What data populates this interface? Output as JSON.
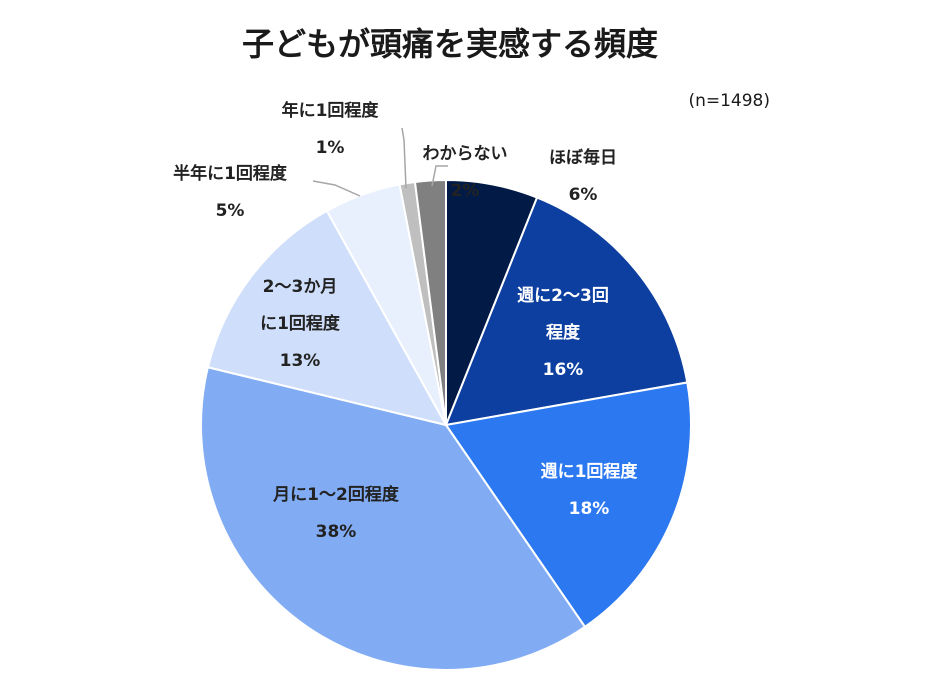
{
  "chart_data": {
    "type": "pie",
    "title": "子どもが頭痛を実感する頻度",
    "note": "(n=1498)",
    "start_angle_deg": 0,
    "direction": "clockwise",
    "slices": [
      {
        "label_lines": [
          "ほぼ毎日"
        ],
        "value": 6,
        "value_text": "6%",
        "color": "#011a46"
      },
      {
        "label_lines": [
          "週に2〜3回",
          "程度"
        ],
        "value": 16,
        "value_text": "16%",
        "color": "#0d3fa0"
      },
      {
        "label_lines": [
          "週に1回程度"
        ],
        "value": 18,
        "value_text": "18%",
        "color": "#2c78f0"
      },
      {
        "label_lines": [
          "月に1〜2回程度"
        ],
        "value": 38,
        "value_text": "38%",
        "color": "#81acf4"
      },
      {
        "label_lines": [
          "2〜3か月",
          "に1回程度"
        ],
        "value": 13,
        "value_text": "13%",
        "color": "#cfdffb"
      },
      {
        "label_lines": [
          "半年に1回程度"
        ],
        "value": 5,
        "value_text": "5%",
        "color": "#e9f0fd"
      },
      {
        "label_lines": [
          "年に1回程度"
        ],
        "value": 1,
        "value_text": "1%",
        "color": "#bfbfbf"
      },
      {
        "label_lines": [
          "わからない"
        ],
        "value": 2,
        "value_text": "2%",
        "color": "#808080"
      }
    ]
  }
}
